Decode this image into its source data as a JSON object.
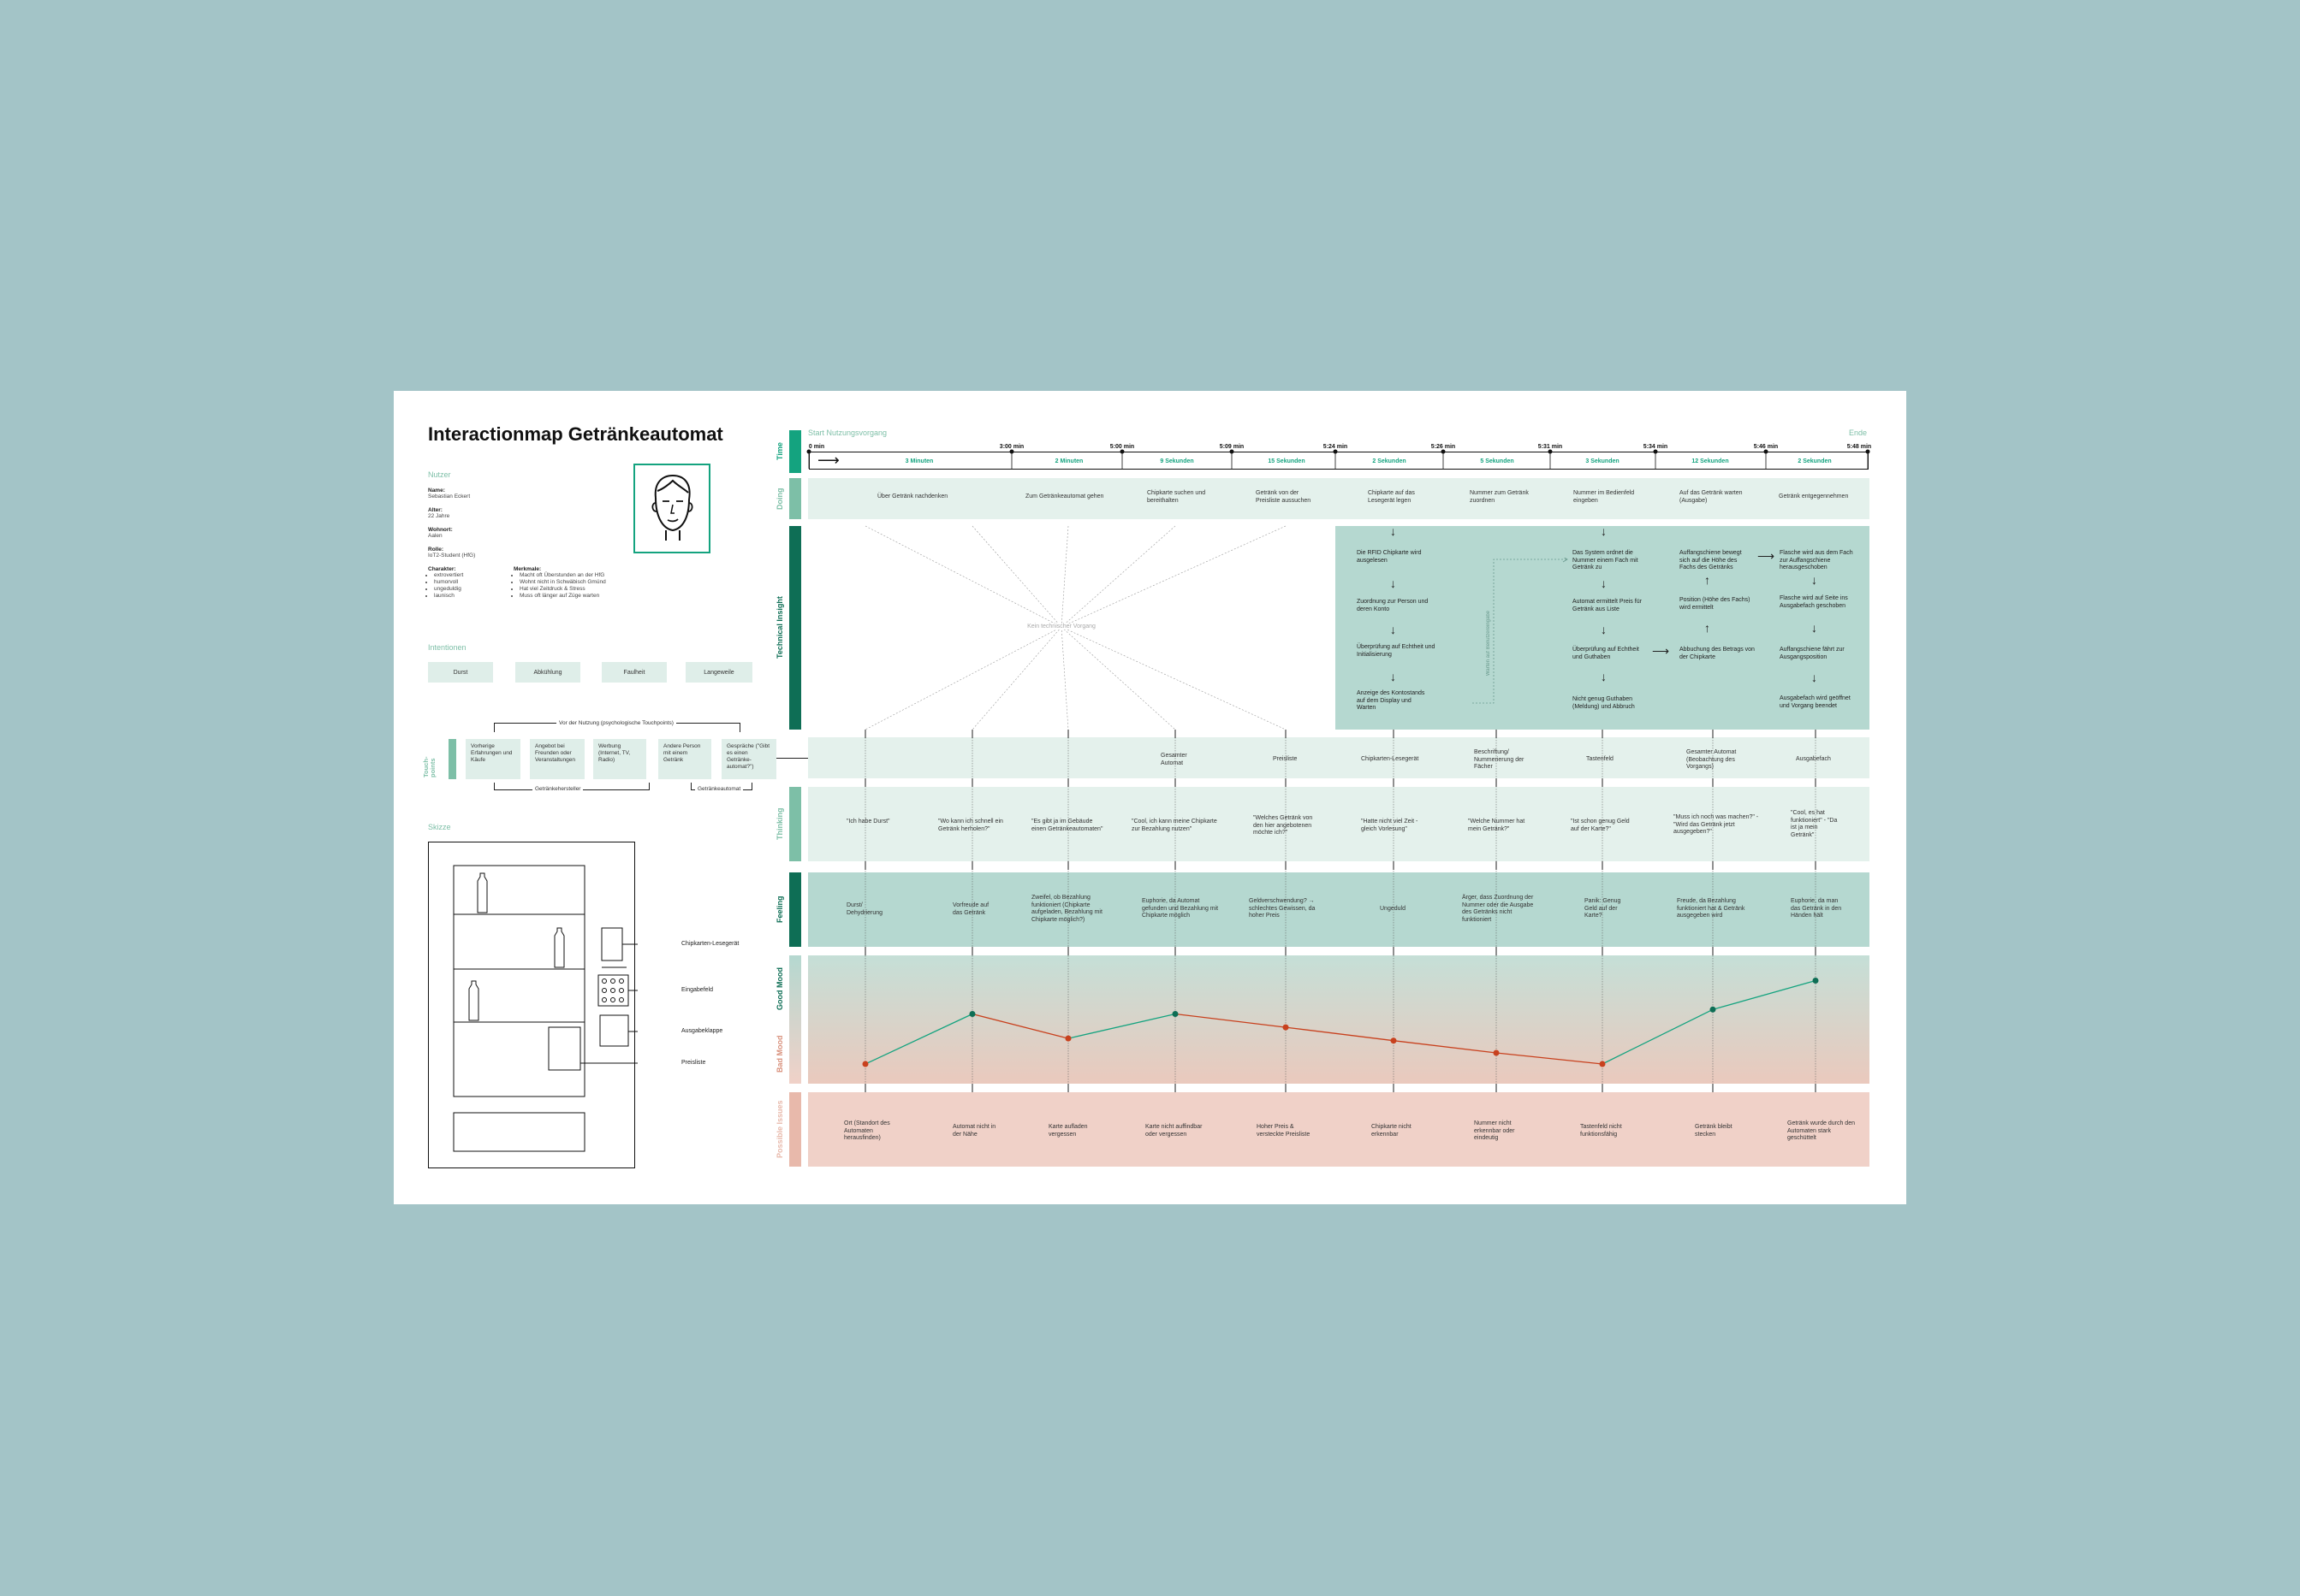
{
  "title": "Interactionmap Getränkeautomat",
  "user": {
    "section_label": "Nutzer",
    "name_label": "Name:",
    "name": "Sebastian Eckert",
    "age_label": "Alter:",
    "age": "22 Jahre",
    "home_label": "Wohnort:",
    "home": "Aalen",
    "role_label": "Rolle:",
    "role": "IoT2-Student (HfG)",
    "character_label": "Charakter:",
    "character": [
      "extrovertiert",
      "humorvoll",
      "ungeduldig",
      "launisch"
    ],
    "traits_label": "Merkmale:",
    "traits": [
      "Macht oft Überstunden an der HfG",
      "Wohnt nicht in Schwäbisch Gmünd",
      "Hat viel Zeitdruck & Stress",
      "Muss oft länger auf Züge warten"
    ]
  },
  "intentions": {
    "section_label": "Intentionen",
    "items": [
      "Durst",
      "Abkühlung",
      "Faulheit",
      "Langeweile"
    ]
  },
  "touchpoints_left": {
    "label": "Touch-points",
    "header": "Vor der Nutzung (psychologische Touchpoints)",
    "boxes": [
      "Vorherige Erfahrungen und Käufe",
      "Angebot bei Freunden oder Veranstaltungen",
      "Werbung (Internet, TV, Radio)",
      "Andere Person mit einem Getränk",
      "Gespräche (\"Gibt es einen Getränke-automat?\")"
    ],
    "bracket_left": "Getränkehersteller",
    "bracket_right": "Getränkeautomat"
  },
  "sketch": {
    "section_label": "Skizze",
    "labels": [
      "Chipkarten-Lesegerät",
      "Eingabefeld",
      "Ausgabeklappe",
      "Preisliste"
    ]
  },
  "row_labels": {
    "time": "Time",
    "doing": "Doing",
    "technical": "Technical Insight",
    "touch": "Touch-points",
    "thinking": "Thinking",
    "feeling": "Feeling",
    "good": "Good Mood",
    "bad": "Bad Mood",
    "issues": "Possible Issues"
  },
  "timeline": {
    "start": "Start Nutzungsvorgang",
    "end": "Ende",
    "ticks": [
      "0 min",
      "3:00 min",
      "5:00 min",
      "5:09 min",
      "5:24 min",
      "5:26 min",
      "5:31 min",
      "5:34 min",
      "5:46 min",
      "5:48 min"
    ],
    "durations": [
      "3 Minuten",
      "2 Minuten",
      "9 Sekunden",
      "15 Sekunden",
      "2 Sekunden",
      "5 Sekunden",
      "3 Sekunden",
      "12 Sekunden",
      "2 Sekunden"
    ]
  },
  "doing": [
    "Über Getränk nachdenken",
    "Zum Getränkeautomat gehen",
    "Chipkarte suchen und bereithalten",
    "Getränk von der Preisliste aussuchen",
    "Chipkarte auf das Lesegerät legen",
    "Nummer zum Getränk zuordnen",
    "Nummer im Bedienfeld eingeben",
    "Auf das Getränk warten (Ausgabe)",
    "Getränk entgegennehmen"
  ],
  "technical": {
    "no_process": "Kein technischer Vorgang",
    "wait_label": "Warten auf Benutzereingabe",
    "col1": [
      "Die RFID Chipkarte wird ausgelesen",
      "Zuordnung zur Person und deren Konto",
      "Überprüfung auf Echtheit und Initialisierung",
      "Anzeige des Kontostands auf dem Display und Warten"
    ],
    "col2": [
      "Das System ordnet die Nummer einem Fach mit Getränk zu",
      "Automat ermittelt Preis für Getränk aus Liste",
      "Überprüfung auf Echtheit und Guthaben",
      "Nicht genug Guthaben (Meldung) und Abbruch"
    ],
    "col3": [
      "Auffangschiene bewegt sich auf die Höhe des Fachs des Getränks",
      "Position (Höhe des Fachs) wird ermittelt",
      "Abbuchung des Betrags von der Chipkarte"
    ],
    "col4": [
      "Flasche wird aus dem Fach zur Auffangschiene herausgeschoben",
      "Flasche wird auf Seite ins Ausgabefach geschoben",
      "Auffangschiene fährt zur Ausgangsposition",
      "Ausgabefach wird geöffnet und Vorgang beendet"
    ]
  },
  "touchpoints": [
    "Gesamter Automat",
    "Preisliste",
    "Chipkarten-Lesegerät",
    "Beschriftung/ Nummerierung der Fächer",
    "Tastenfeld",
    "Gesamter Automat (Beobachtung des Vorgangs)",
    "Ausgabefach"
  ],
  "thinking": [
    "\"Ich habe Durst\"",
    "\"Wo kann ich schnell ein Getränk herholen?\"",
    "\"Es gibt ja im Gebäude einen Getränkeautomaten\"",
    "\"Cool, ich kann meine Chipkarte zur Bezahlung nutzen\"",
    "\"Welches Getränk von den hier angebotenen möchte ich?\"",
    "\"Hatte nicht viel Zeit - gleich Vorlesung\"",
    "\"Welche Nummer hat mein Getränk?\"",
    "\"Ist schon genug Geld auf der Karte?\"",
    "\"Muss ich noch was machen?\" - \"Wird das Getränk jetzt ausgegeben?\"",
    "\"Cool, es hat funktioniert\" - \"Da ist ja mein Getränk\""
  ],
  "feeling": [
    "Durst/ Dehydrierung",
    "Vorfreude auf das Getränk",
    "Zweifel, ob Bezahlung funktioniert (Chipkarte aufgeladen, Bezahlung mit Chipkarte möglich?)",
    "Euphorie, da Automat gefunden und Bezahlung mit Chipkarte möglich",
    "Geldverschwendung? → schlechtes Gewissen, da hoher Preis",
    "Ungeduld",
    "Ärger, dass Zuordnung der Nummer oder die Ausgabe des Getränks nicht funktioniert",
    "Panik: Genug Geld auf der Karte?",
    "Freude, da Bezahlung funktioniert hat & Getränk ausgegeben wird",
    "Euphorie, da man das Getränk in den Händen hält"
  ],
  "mood": [
    0.1,
    0.55,
    0.33,
    0.55,
    0.43,
    0.31,
    0.2,
    0.1,
    0.59,
    0.85
  ],
  "issues": [
    "Ort (Standort des Automaten herausfinden)",
    "Automat nicht in der Nähe",
    "Karte aufladen vergessen",
    "Karte nicht auffindbar oder vergessen",
    "Hoher Preis & versteckte Preisliste",
    "Chipkarte nicht erkennbar",
    "Nummer nicht erkennbar oder eindeutig",
    "Tastenfeld nicht funktionsfähig",
    "Getränk bleibt stecken",
    "Getränk wurde durch den Automaten stark geschüttelt"
  ],
  "colors": {
    "accent": "#14a37f",
    "dark_green": "#0e6e55",
    "mid_green": "#b5d8d0",
    "light_green": "#e4f1ec",
    "rose": "#f0d1c8",
    "bad": "#c8411e"
  }
}
